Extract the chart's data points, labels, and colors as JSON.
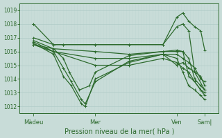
{
  "bg_color": "#c8dcd8",
  "grid_color_major": "#b0ccc8",
  "grid_color_minor": "#c0d8d4",
  "line_color": "#2d6a2d",
  "xlabel": "Pression niveau de la mer( hPa )",
  "ylim": [
    1011.5,
    1019.5
  ],
  "yticks": [
    1012,
    1013,
    1014,
    1015,
    1016,
    1017,
    1018,
    1019
  ],
  "xtick_labels": [
    "Màdeu",
    "Mer",
    "Ven",
    "Sam|"
  ],
  "xtick_pos": [
    0.07,
    0.38,
    0.79,
    0.93
  ],
  "figsize": [
    3.2,
    2.0
  ],
  "dpi": 100,
  "series": [
    {
      "x": [
        0.07,
        0.07,
        0.17,
        0.17,
        0.22,
        0.38,
        0.55,
        0.72,
        0.79,
        0.82,
        0.85,
        0.88,
        0.91,
        0.93
      ],
      "y": [
        1018.0,
        1018.0,
        1016.5,
        1016.5,
        1016.5,
        1016.5,
        1016.5,
        1016.5,
        1018.5,
        1018.8,
        1018.2,
        1017.8,
        1017.5,
        1016.1
      ]
    },
    {
      "x": [
        0.07,
        0.17,
        0.22,
        0.38,
        0.55,
        0.72,
        0.79,
        0.82,
        0.85,
        0.88,
        0.91,
        0.93
      ],
      "y": [
        1017.0,
        1016.5,
        1016.5,
        1016.5,
        1016.5,
        1016.5,
        1017.8,
        1018.0,
        1017.5,
        1014.5,
        1014.2,
        1013.5
      ]
    },
    {
      "x": [
        0.07,
        0.17,
        0.22,
        0.25,
        0.3,
        0.35,
        0.38,
        0.55,
        0.72,
        0.79,
        0.82,
        0.85,
        0.88,
        0.91,
        0.93
      ],
      "y": [
        1016.8,
        1016.2,
        1015.5,
        1014.5,
        1013.2,
        1013.5,
        1014.5,
        1015.7,
        1016.0,
        1016.1,
        1016.0,
        1014.2,
        1013.8,
        1013.2,
        1013.0
      ]
    },
    {
      "x": [
        0.07,
        0.17,
        0.22,
        0.26,
        0.31,
        0.33,
        0.38,
        0.55,
        0.72,
        0.79,
        0.82,
        0.85,
        0.88,
        0.93
      ],
      "y": [
        1016.7,
        1016.0,
        1014.8,
        1013.8,
        1012.5,
        1012.2,
        1013.8,
        1015.3,
        1015.8,
        1015.0,
        1015.2,
        1014.8,
        1014.5,
        1013.2
      ]
    },
    {
      "x": [
        0.07,
        0.17,
        0.22,
        0.26,
        0.31,
        0.33,
        0.38,
        0.55,
        0.72,
        0.79,
        0.82,
        0.85,
        0.88,
        0.91,
        0.93
      ],
      "y": [
        1016.6,
        1015.8,
        1014.2,
        1013.5,
        1012.2,
        1012.0,
        1014.0,
        1015.2,
        1015.8,
        1015.5,
        1014.5,
        1013.5,
        1013.2,
        1012.8,
        1012.5
      ]
    },
    {
      "x": [
        0.07,
        0.17,
        0.38,
        0.55,
        0.72,
        0.79,
        0.82,
        0.85,
        0.88,
        0.91,
        0.93
      ],
      "y": [
        1016.5,
        1016.2,
        1016.0,
        1015.8,
        1016.0,
        1016.0,
        1016.0,
        1015.5,
        1014.0,
        1013.5,
        1013.2
      ]
    },
    {
      "x": [
        0.07,
        0.17,
        0.38,
        0.55,
        0.72,
        0.79,
        0.82,
        0.85,
        0.88,
        0.91,
        0.93
      ],
      "y": [
        1016.5,
        1016.0,
        1015.5,
        1015.5,
        1015.8,
        1015.8,
        1015.5,
        1015.2,
        1014.8,
        1014.0,
        1013.8
      ]
    },
    {
      "x": [
        0.07,
        0.17,
        0.38,
        0.55,
        0.72,
        0.79,
        0.82,
        0.85,
        0.88,
        0.91,
        0.93
      ],
      "y": [
        1016.5,
        1016.0,
        1015.0,
        1015.0,
        1015.5,
        1015.2,
        1014.8,
        1014.5,
        1013.8,
        1013.2,
        1012.8
      ]
    }
  ]
}
